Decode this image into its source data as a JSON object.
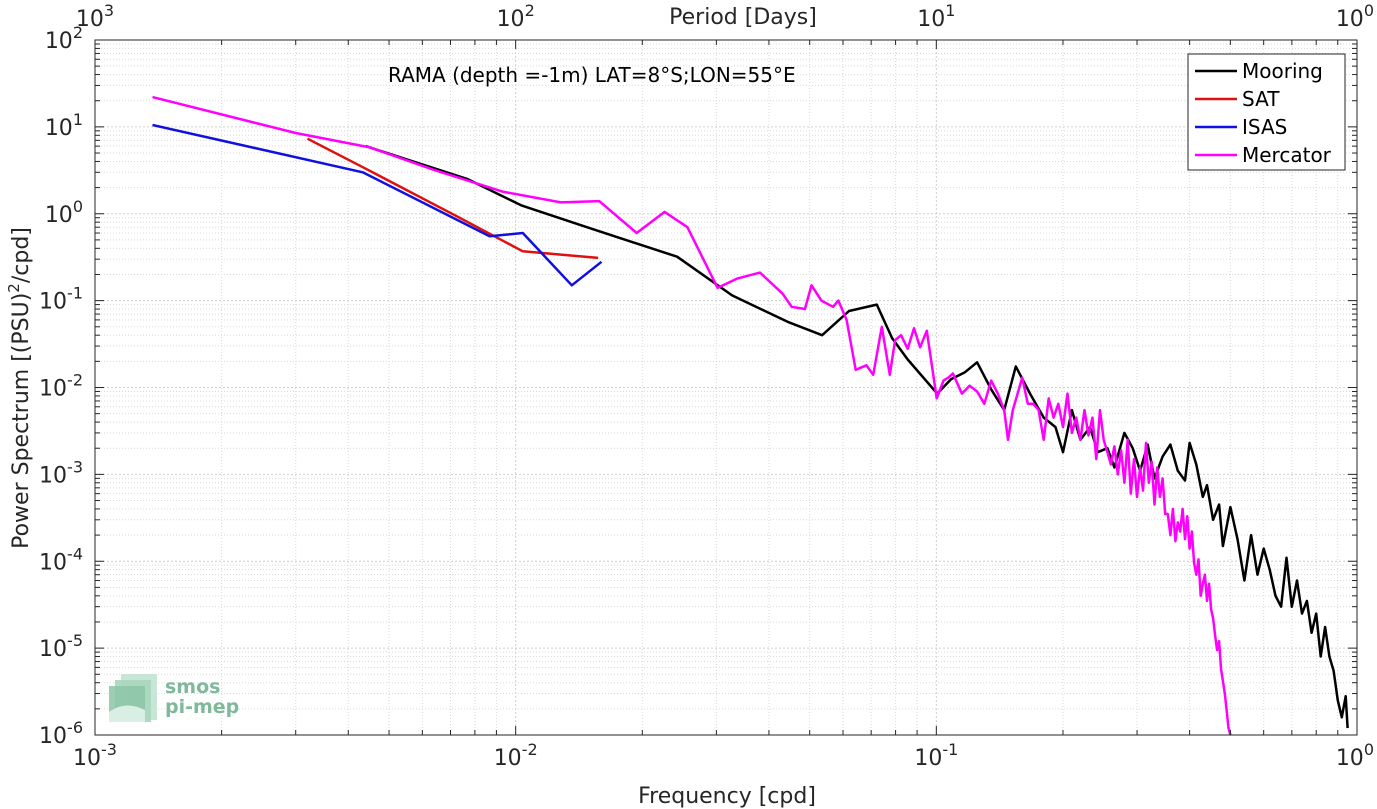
{
  "chart_data": {
    "type": "line",
    "annotation": "RAMA (depth =-1m) LAT=8°S;LON=55°E",
    "xlabel": "Frequency [cpd]",
    "ylabel": "Power Spectrum [(PSU)²/cpd]",
    "ylabel_base": "Power Spectrum [(PSU)",
    "ylabel_sup": "2",
    "ylabel_tail": "/cpd]",
    "top_xlabel": "Period [Days]",
    "x_scale": "log",
    "y_scale": "log",
    "xlim": [
      0.001,
      1
    ],
    "ylim": [
      1e-06,
      100
    ],
    "grid": true,
    "legend_position": "top-right",
    "x_ticks": [
      {
        "value": 0.001,
        "base": "10",
        "exp": "-3"
      },
      {
        "value": 0.01,
        "base": "10",
        "exp": "-2"
      },
      {
        "value": 0.1,
        "base": "10",
        "exp": "-1"
      },
      {
        "value": 1,
        "base": "10",
        "exp": "0"
      }
    ],
    "y_ticks": [
      {
        "value": 1e-06,
        "base": "10",
        "exp": "-6"
      },
      {
        "value": 1e-05,
        "base": "10",
        "exp": "-5"
      },
      {
        "value": 0.0001,
        "base": "10",
        "exp": "-4"
      },
      {
        "value": 0.001,
        "base": "10",
        "exp": "-3"
      },
      {
        "value": 0.01,
        "base": "10",
        "exp": "-2"
      },
      {
        "value": 0.1,
        "base": "10",
        "exp": "-1"
      },
      {
        "value": 1,
        "base": "10",
        "exp": "0"
      },
      {
        "value": 10,
        "base": "10",
        "exp": "1"
      },
      {
        "value": 100,
        "base": "10",
        "exp": "2"
      }
    ],
    "top_ticks": [
      {
        "value": 0.001,
        "base": "10",
        "exp": "3"
      },
      {
        "value": 0.01,
        "base": "10",
        "exp": "2"
      },
      {
        "value": 0.1,
        "base": "10",
        "exp": "1"
      },
      {
        "value": 1,
        "base": "10",
        "exp": "0"
      }
    ],
    "series": [
      {
        "name": "Mooring",
        "color": "#000000",
        "points": [
          [
            0.0044,
            6.0
          ],
          [
            0.0077,
            2.5
          ],
          [
            0.0103,
            1.25
          ],
          [
            0.0145,
            0.72
          ],
          [
            0.0242,
            0.32
          ],
          [
            0.0327,
            0.115
          ],
          [
            0.0443,
            0.057
          ],
          [
            0.0535,
            0.04
          ],
          [
            0.062,
            0.076
          ],
          [
            0.0722,
            0.09
          ],
          [
            0.0785,
            0.037
          ],
          [
            0.0855,
            0.021
          ],
          [
            0.1005,
            0.0085
          ],
          [
            0.1085,
            0.0125
          ],
          [
            0.117,
            0.015
          ],
          [
            0.125,
            0.0195
          ],
          [
            0.135,
            0.0095
          ],
          [
            0.145,
            0.0055
          ],
          [
            0.1545,
            0.0175
          ],
          [
            0.167,
            0.0085
          ],
          [
            0.18,
            0.0045
          ],
          [
            0.192,
            0.0035
          ],
          [
            0.2,
            0.0018
          ],
          [
            0.21,
            0.0055
          ],
          [
            0.22,
            0.0025
          ],
          [
            0.232,
            0.0035
          ],
          [
            0.242,
            0.0018
          ],
          [
            0.255,
            0.002
          ],
          [
            0.265,
            0.0012
          ],
          [
            0.28,
            0.003
          ],
          [
            0.293,
            0.002
          ],
          [
            0.305,
            0.0011
          ],
          [
            0.318,
            0.0022
          ],
          [
            0.33,
            0.0009
          ],
          [
            0.345,
            0.0016
          ],
          [
            0.36,
            0.0022
          ],
          [
            0.375,
            0.0011
          ],
          [
            0.39,
            0.00085
          ],
          [
            0.4,
            0.0023
          ],
          [
            0.415,
            0.0013
          ],
          [
            0.43,
            0.00055
          ],
          [
            0.44,
            0.00075
          ],
          [
            0.455,
            0.0003
          ],
          [
            0.47,
            0.00045
          ],
          [
            0.48,
            0.00015
          ],
          [
            0.5,
            0.00042
          ],
          [
            0.52,
            0.00018
          ],
          [
            0.54,
            6e-05
          ],
          [
            0.56,
            0.0002
          ],
          [
            0.58,
            7e-05
          ],
          [
            0.6,
            0.00014
          ],
          [
            0.62,
            8e-05
          ],
          [
            0.64,
            4e-05
          ],
          [
            0.66,
            3e-05
          ],
          [
            0.68,
            0.00011
          ],
          [
            0.7,
            3e-05
          ],
          [
            0.72,
            6e-05
          ],
          [
            0.74,
            2.5e-05
          ],
          [
            0.76,
            3.5e-05
          ],
          [
            0.78,
            1.5e-05
          ],
          [
            0.8,
            2.5e-05
          ],
          [
            0.82,
            8e-06
          ],
          [
            0.84,
            1.75e-05
          ],
          [
            0.86,
            8e-06
          ],
          [
            0.88,
            5.5e-06
          ],
          [
            0.9,
            2.5e-06
          ],
          [
            0.92,
            1.6e-06
          ],
          [
            0.94,
            2.8e-06
          ],
          [
            0.95,
            1.2e-06
          ]
        ]
      },
      {
        "name": "SAT",
        "color": "#e01010",
        "points": [
          [
            0.0032,
            7.3
          ],
          [
            0.0044,
            3.3
          ],
          [
            0.0072,
            0.95
          ],
          [
            0.0104,
            0.37
          ],
          [
            0.0157,
            0.31
          ]
        ]
      },
      {
        "name": "ISAS",
        "color": "#1010e0",
        "points": [
          [
            0.00137,
            10.5
          ],
          [
            0.00433,
            3.0
          ],
          [
            0.00867,
            0.55
          ],
          [
            0.0104,
            0.6
          ],
          [
            0.0136,
            0.15
          ],
          [
            0.016,
            0.28
          ]
        ]
      },
      {
        "name": "Mercator",
        "color": "#ff00ff",
        "points": [
          [
            0.00137,
            22.0
          ],
          [
            0.003,
            8.5
          ],
          [
            0.0045,
            5.8
          ],
          [
            0.0064,
            3.2
          ],
          [
            0.0093,
            1.8
          ],
          [
            0.0128,
            1.35
          ],
          [
            0.0158,
            1.4
          ],
          [
            0.0194,
            0.6
          ],
          [
            0.0226,
            1.05
          ],
          [
            0.0256,
            0.7
          ],
          [
            0.0302,
            0.14
          ],
          [
            0.0337,
            0.18
          ],
          [
            0.0381,
            0.21
          ],
          [
            0.0431,
            0.12
          ],
          [
            0.0453,
            0.085
          ],
          [
            0.0487,
            0.08
          ],
          [
            0.0505,
            0.15
          ],
          [
            0.0533,
            0.1
          ],
          [
            0.0568,
            0.085
          ],
          [
            0.0585,
            0.1
          ],
          [
            0.0612,
            0.06
          ],
          [
            0.0643,
            0.016
          ],
          [
            0.0682,
            0.018
          ],
          [
            0.0708,
            0.014
          ],
          [
            0.0742,
            0.05
          ],
          [
            0.0775,
            0.014
          ],
          [
            0.0798,
            0.035
          ],
          [
            0.0824,
            0.04
          ],
          [
            0.0855,
            0.028
          ],
          [
            0.0885,
            0.048
          ],
          [
            0.0915,
            0.029
          ],
          [
            0.0949,
            0.045
          ],
          [
            0.1002,
            0.0075
          ],
          [
            0.104,
            0.012
          ],
          [
            0.1068,
            0.013
          ],
          [
            0.1095,
            0.0145
          ],
          [
            0.115,
            0.0085
          ],
          [
            0.12,
            0.0105
          ],
          [
            0.125,
            0.009
          ],
          [
            0.13,
            0.0065
          ],
          [
            0.135,
            0.012
          ],
          [
            0.14,
            0.0085
          ],
          [
            0.145,
            0.0055
          ],
          [
            0.148,
            0.0025
          ],
          [
            0.152,
            0.0055
          ],
          [
            0.156,
            0.0085
          ],
          [
            0.16,
            0.013
          ],
          [
            0.165,
            0.0065
          ],
          [
            0.17,
            0.0065
          ],
          [
            0.175,
            0.0055
          ],
          [
            0.18,
            0.0025
          ],
          [
            0.185,
            0.0075
          ],
          [
            0.19,
            0.0045
          ],
          [
            0.195,
            0.0065
          ],
          [
            0.2,
            0.0035
          ],
          [
            0.205,
            0.0085
          ],
          [
            0.21,
            0.003
          ],
          [
            0.215,
            0.0045
          ],
          [
            0.22,
            0.0025
          ],
          [
            0.225,
            0.0055
          ],
          [
            0.23,
            0.0028
          ],
          [
            0.235,
            0.0045
          ],
          [
            0.24,
            0.0015
          ],
          [
            0.245,
            0.0055
          ],
          [
            0.25,
            0.0025
          ],
          [
            0.255,
            0.0018
          ],
          [
            0.26,
            0.0013
          ],
          [
            0.265,
            0.0021
          ],
          [
            0.27,
            0.001
          ],
          [
            0.275,
            0.0019
          ],
          [
            0.28,
            0.0008
          ],
          [
            0.285,
            0.0025
          ],
          [
            0.29,
            0.0006
          ],
          [
            0.295,
            0.0015
          ],
          [
            0.3,
            0.00055
          ],
          [
            0.305,
            0.0012
          ],
          [
            0.31,
            0.00065
          ],
          [
            0.315,
            0.0023
          ],
          [
            0.32,
            0.0008
          ],
          [
            0.325,
            0.0014
          ],
          [
            0.33,
            0.00045
          ],
          [
            0.335,
            0.0012
          ],
          [
            0.34,
            0.00055
          ],
          [
            0.345,
            0.0009
          ],
          [
            0.35,
            0.00035
          ],
          [
            0.355,
            0.00035
          ],
          [
            0.36,
            0.0002
          ],
          [
            0.365,
            0.0004
          ],
          [
            0.37,
            0.00017
          ],
          [
            0.375,
            0.00028
          ],
          [
            0.38,
            0.00022
          ],
          [
            0.385,
            0.0004
          ],
          [
            0.39,
            0.00018
          ],
          [
            0.395,
            0.00033
          ],
          [
            0.4,
            0.00014
          ],
          [
            0.405,
            0.00022
          ],
          [
            0.41,
            9.5e-05
          ],
          [
            0.415,
            7e-05
          ],
          [
            0.42,
            0.000105
          ],
          [
            0.425,
            4e-05
          ],
          [
            0.43,
            5.5e-05
          ],
          [
            0.435,
            7e-05
          ],
          [
            0.44,
            3.5e-05
          ],
          [
            0.445,
            5.5e-05
          ],
          [
            0.45,
            2.8e-05
          ],
          [
            0.455,
            2.2e-05
          ],
          [
            0.46,
            1.4e-05
          ],
          [
            0.465,
            9.5e-06
          ],
          [
            0.47,
            1.2e-05
          ],
          [
            0.475,
            5.8e-06
          ],
          [
            0.48,
            4.2e-06
          ],
          [
            0.485,
            3e-06
          ],
          [
            0.49,
            1.9e-06
          ],
          [
            0.495,
            1.2e-06
          ],
          [
            0.5,
            1e-06
          ]
        ]
      }
    ]
  },
  "logo": {
    "line1": "smos",
    "line2": "pi-mep"
  }
}
